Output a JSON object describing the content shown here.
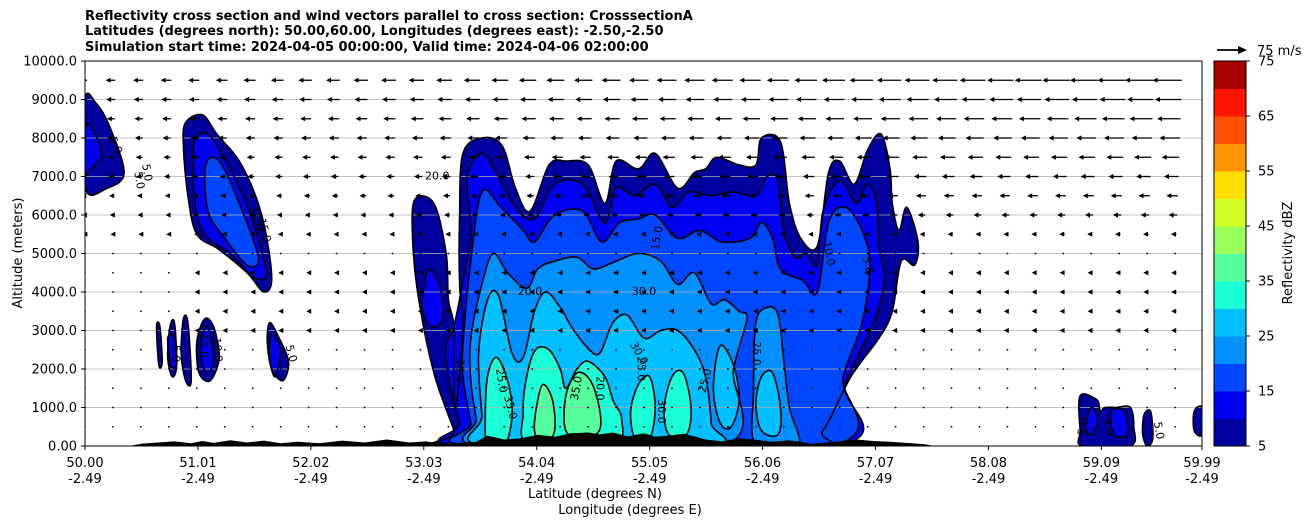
{
  "title": {
    "line1": "Reflectivity cross section and wind vectors parallel to cross section: CrosssectionA",
    "line2": "Latitudes (degrees north): 50.00,60.00, Longitudes (degrees east): -2.50,-2.50",
    "line3": "Simulation start time: 2024-04-05 00:00:00, Valid time: 2024-04-06 02:00:00"
  },
  "chart_data": {
    "type": "heatmap",
    "subtype": "filled contour cross section with wind vector quiver",
    "xlabel_lat": "Latitude (degrees N)",
    "xlabel_lon": "Longitude (degrees E)",
    "ylabel": "Altitude (meters)",
    "xlim": [
      50.0,
      59.99
    ],
    "ylim": [
      0,
      10000
    ],
    "x_ticks": [
      {
        "lat": "50.00",
        "lon": "-2.49",
        "value": 50.0
      },
      {
        "lat": "51.01",
        "lon": "-2.49",
        "value": 51.01
      },
      {
        "lat": "52.02",
        "lon": "-2.49",
        "value": 52.02
      },
      {
        "lat": "53.03",
        "lon": "-2.49",
        "value": 53.03
      },
      {
        "lat": "54.04",
        "lon": "-2.49",
        "value": 54.04
      },
      {
        "lat": "55.05",
        "lon": "-2.49",
        "value": 55.05
      },
      {
        "lat": "56.06",
        "lon": "-2.49",
        "value": 56.06
      },
      {
        "lat": "57.07",
        "lon": "-2.49",
        "value": 57.07
      },
      {
        "lat": "58.08",
        "lon": "-2.49",
        "value": 58.08
      },
      {
        "lat": "59.09",
        "lon": "-2.49",
        "value": 59.09
      },
      {
        "lat": "59.99",
        "lon": "-2.49",
        "value": 59.99
      }
    ],
    "y_ticks": [
      {
        "label": "0.00",
        "value": 0
      },
      {
        "label": "1000.0",
        "value": 1000
      },
      {
        "label": "2000.0",
        "value": 2000
      },
      {
        "label": "3000.0",
        "value": 3000
      },
      {
        "label": "4000.0",
        "value": 4000
      },
      {
        "label": "5000.0",
        "value": 5000
      },
      {
        "label": "6000.0",
        "value": 6000
      },
      {
        "label": "7000.0",
        "value": 7000
      },
      {
        "label": "8000.0",
        "value": 8000
      },
      {
        "label": "9000.0",
        "value": 9000
      },
      {
        "label": "10000.0",
        "value": 10000
      }
    ],
    "grid": "horizontal",
    "colorbar": {
      "label": "Reflectivity dBZ",
      "levels": [
        5,
        10,
        15,
        20,
        25,
        30,
        35,
        40,
        45,
        50,
        55,
        60,
        65,
        70,
        75
      ],
      "tick_labels": [
        "5",
        "15",
        "25",
        "35",
        "45",
        "55",
        "65",
        "75"
      ],
      "tick_values": [
        5,
        15,
        25,
        35,
        45,
        55,
        65,
        75
      ],
      "colors": [
        "#00009e",
        "#0000f2",
        "#0047ff",
        "#0091ff",
        "#00c0ff",
        "#1affd5",
        "#55ff9e",
        "#9bff5a",
        "#d0ff27",
        "#ffdf00",
        "#ff9400",
        "#ff5100",
        "#ff1300",
        "#a80000"
      ]
    },
    "quiver_key": {
      "label": "75 m/s",
      "speed": 75
    },
    "wind_direction": "toward decreasing latitude (southward) aloft",
    "contour_labels": [
      "5.0",
      "5.0",
      "5.0",
      "5.0",
      "15.0",
      "10.0",
      "10.0",
      "15.0",
      "5.0",
      "20.0",
      "20.0",
      "30.0",
      "30.0",
      "25.0",
      "35.0",
      "35.0",
      "20.0",
      "30.0",
      "25.0",
      "30.0",
      "25.0",
      "25.0",
      "15.0",
      "10.0",
      "5.0",
      "5.0",
      "5.0",
      "5.0"
    ],
    "cells": [
      {
        "name": "cell-50.0",
        "lat_range": [
          50.0,
          50.35
        ],
        "alt_range": [
          6700,
          9000
        ],
        "max_dbz": 10
      },
      {
        "name": "cell-51.2",
        "lat_range": [
          50.9,
          51.7
        ],
        "alt_range": [
          4000,
          8500
        ],
        "max_dbz": 15
      },
      {
        "name": "cell-low-50.7",
        "lat_range": [
          50.6,
          51.3
        ],
        "alt_range": [
          1700,
          3300
        ],
        "max_dbz": 10
      },
      {
        "name": "cell-51.7",
        "lat_range": [
          51.65,
          51.85
        ],
        "alt_range": [
          1700,
          3200
        ],
        "max_dbz": 10
      },
      {
        "name": "main-line",
        "lat_range": [
          52.95,
          57.45
        ],
        "alt_range": [
          0,
          8000
        ],
        "max_dbz": 40
      },
      {
        "name": "cell-59.0",
        "lat_range": [
          58.9,
          59.4
        ],
        "alt_range": [
          0,
          1300
        ],
        "max_dbz": 10
      },
      {
        "name": "cell-59.5",
        "lat_range": [
          59.45,
          59.55
        ],
        "alt_range": [
          0,
          900
        ],
        "max_dbz": 5
      },
      {
        "name": "cell-59.9",
        "lat_range": [
          59.9,
          59.99
        ],
        "alt_range": [
          300,
          1000
        ],
        "max_dbz": 10
      }
    ]
  }
}
